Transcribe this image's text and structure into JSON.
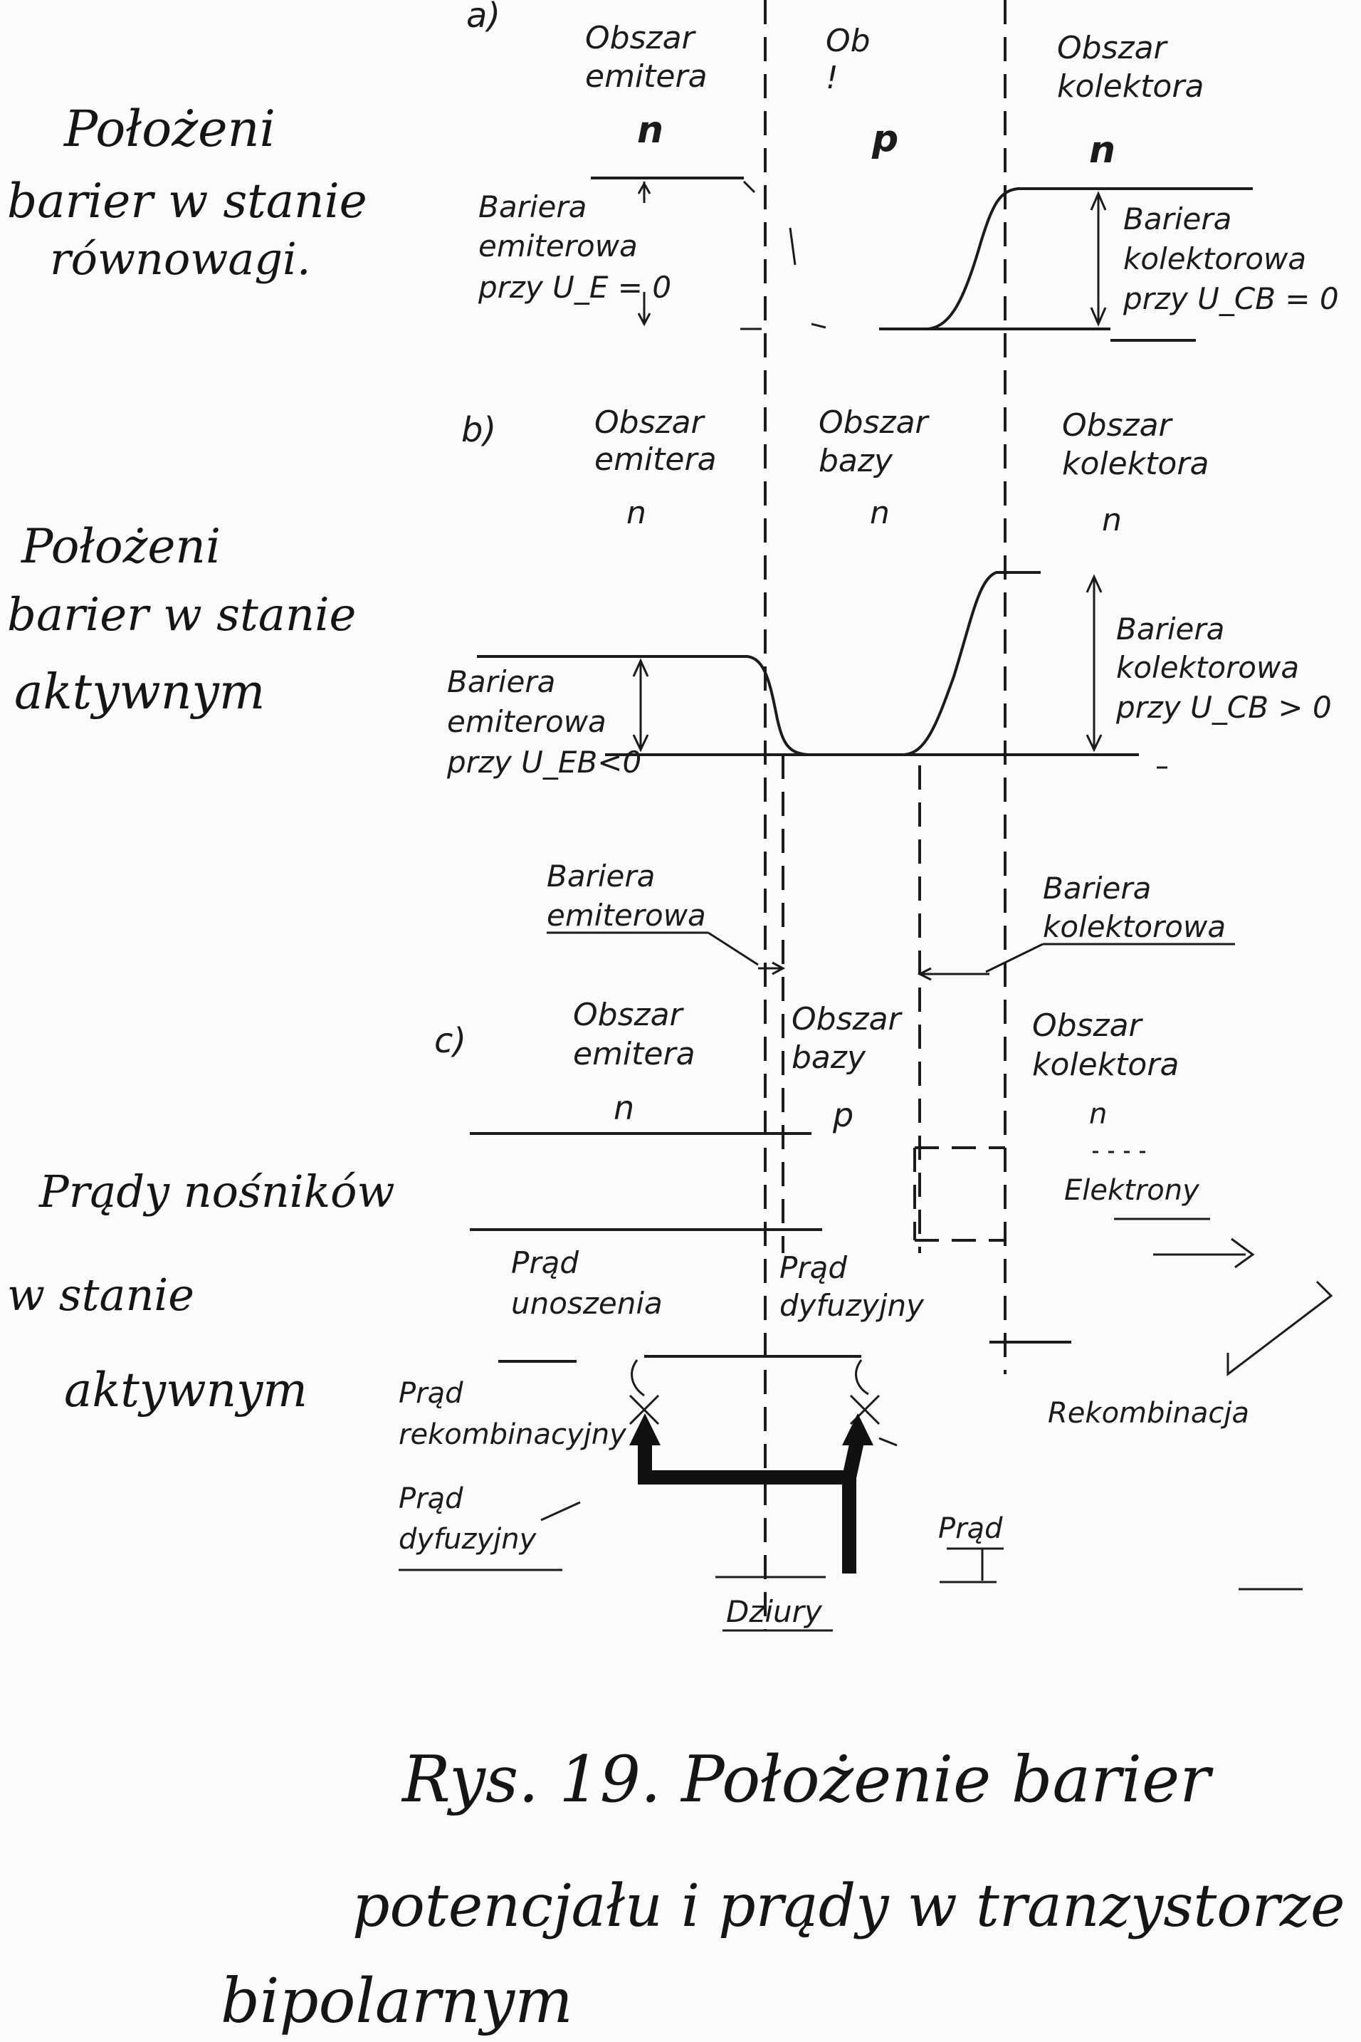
{
  "margin_notes": {
    "equilibrium": [
      "Położeni",
      "barier w stanie",
      "równowagi."
    ],
    "active": [
      "Położeni",
      "barier w stanie",
      "aktywnym"
    ],
    "currents": [
      "Prądy nośników",
      "w stanie",
      "aktywnym"
    ]
  },
  "panel_a": {
    "letter": "a)",
    "regions": {
      "emitter": [
        "Obszar",
        "emitera"
      ],
      "base": [
        "Ob",
        "!"
      ],
      "collector": [
        "Obszar",
        "kolektora"
      ]
    },
    "doping": {
      "emitter": "n",
      "base": "p",
      "collector": "n"
    },
    "emitter_barrier_label": [
      "Bariera",
      "emiterowa",
      "przy U_E = 0"
    ],
    "collector_barrier_label": [
      "Bariera",
      "kolektorowa",
      "przy U_CB = 0"
    ]
  },
  "panel_b": {
    "letter": "b)",
    "regions": {
      "emitter": [
        "Obszar",
        "emitera"
      ],
      "base": [
        "Obszar",
        "bazy"
      ],
      "collector": [
        "Obszar",
        "kolektora"
      ]
    },
    "doping": {
      "emitter": "n",
      "base": "n",
      "collector": "n"
    },
    "emitter_barrier_label": [
      "Bariera",
      "emiterowa",
      "przy U_EB<0"
    ],
    "collector_barrier_label": [
      "Bariera",
      "kolektorowa",
      "przy U_CB > 0"
    ],
    "emitter_junction_label": [
      "Bariera",
      "emiterowa"
    ],
    "collector_junction_label": [
      "Bariera",
      "kolektorowa"
    ]
  },
  "panel_c": {
    "letter": "c)",
    "regions": {
      "emitter": [
        "Obszar",
        "emitera"
      ],
      "base": [
        "Obszar",
        "bazy"
      ],
      "collector": [
        "Obszar",
        "kolektora"
      ]
    },
    "doping": {
      "emitter": "n",
      "base": "p",
      "collector": "n"
    },
    "electrons": "Elektrony",
    "drift_current": [
      "Prąd",
      "unoszenia"
    ],
    "diffusion_current_base": [
      "Prąd",
      "dyfuzyjny"
    ],
    "recombination_current": [
      "Prąd",
      "rekombinacyjny"
    ],
    "diffusion_current_emitter": [
      "Prąd",
      "dyfuzyjny"
    ],
    "recombination_right": "Rekombinacja",
    "current_right": "Prąd",
    "holes": "Dziury"
  },
  "caption": [
    "Rys. 19. Położenie barier",
    "potencjału i prądy w tranzystorze",
    "bipolarnym"
  ],
  "colors": {
    "ink": "#1b1b1b",
    "paper": "#fbfbf9"
  }
}
